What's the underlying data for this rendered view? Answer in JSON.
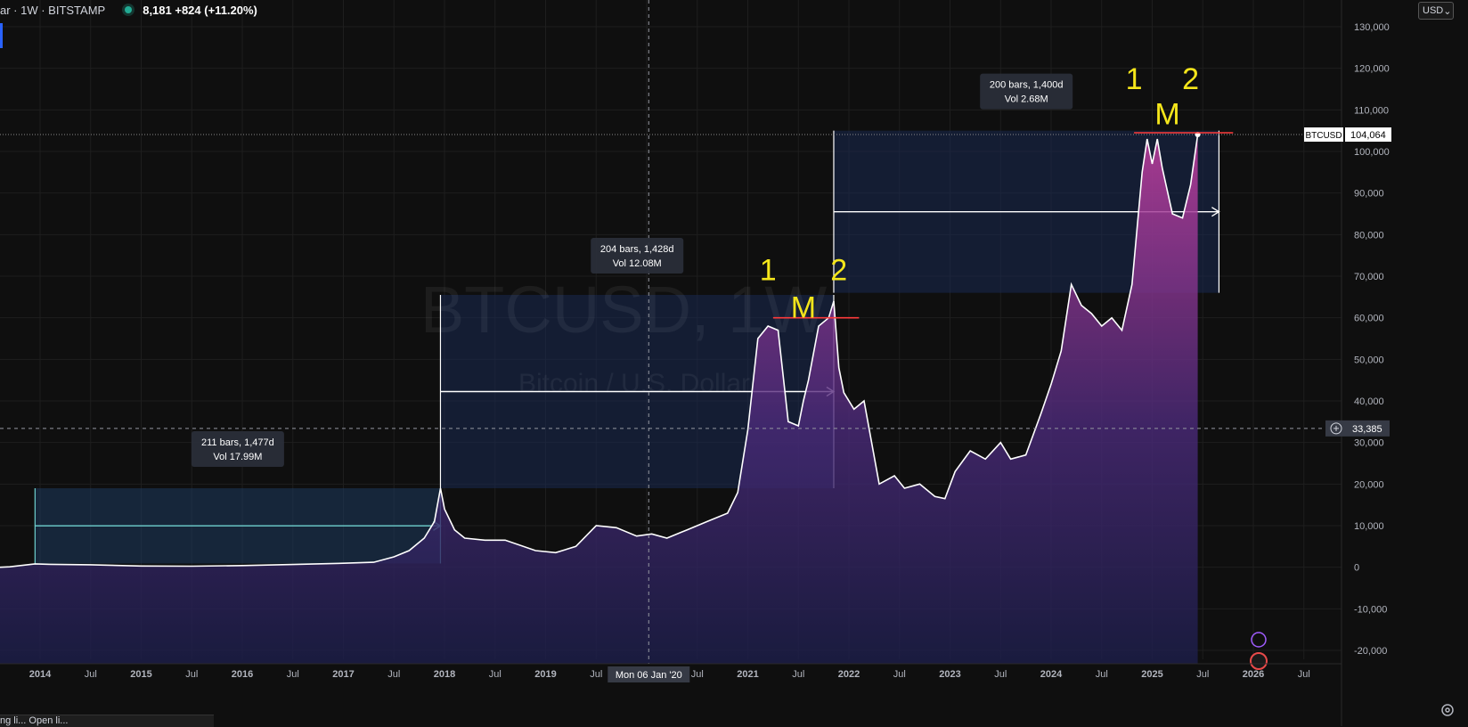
{
  "header": {
    "symbol_text": "ar · 1W · BITSTAMP",
    "values_text": "8,181  +824 (+11.20%)",
    "currency": "USD"
  },
  "watermark": {
    "title": "BTCUSD, 1W",
    "subtitle": "Bitcoin / U.S. Dollar"
  },
  "crosshair": {
    "price_label": "33,385",
    "date_label": "Mon 06 Jan '20"
  },
  "price_tag": {
    "symbol": "BTCUSD",
    "value": "104,064"
  },
  "bottom_strip_text": "ng li... Open li...",
  "colors": {
    "background": "#0f0f0f",
    "price_line": "#ffffff",
    "box_fill": "#1a2a52",
    "box_first": "#1e3a5f",
    "annotation": "#f5e61b",
    "resistance": "#ff3b3b",
    "arrow_first": "#6fd1cf",
    "area_top": "#c23fa0",
    "area_bottom": "#1c1e4a"
  },
  "chart_data": {
    "type": "area",
    "ylim": [
      -20000,
      130000
    ],
    "y_ticks": [
      "130,000",
      "120,000",
      "110,000",
      "100,000",
      "90,000",
      "80,000",
      "70,000",
      "60,000",
      "50,000",
      "40,000",
      "30,000",
      "20,000",
      "10,000",
      "0",
      "-10,000",
      "-20,000"
    ],
    "x_ticks": [
      "2014",
      "Jul",
      "2015",
      "Jul",
      "2016",
      "Jul",
      "2017",
      "Jul",
      "2018",
      "Jul",
      "2019",
      "Jul",
      "2020",
      "Jul",
      "2021",
      "Jul",
      "2022",
      "Jul",
      "2023",
      "Jul",
      "2024",
      "Jul",
      "2025",
      "Jul",
      "2026",
      "Jul"
    ],
    "series": [
      {
        "x": [
          2013.7,
          2013.95,
          2014.1,
          2014.5,
          2015.0,
          2015.5,
          2016.0,
          2016.5,
          2017.0,
          2017.3,
          2017.5,
          2017.65,
          2017.8,
          2017.9,
          2017.96,
          2018.0,
          2018.1,
          2018.2,
          2018.4,
          2018.6,
          2018.9,
          2019.1,
          2019.3,
          2019.5,
          2019.7,
          2019.9,
          2020.05,
          2020.2,
          2020.4,
          2020.6,
          2020.8,
          2020.9,
          2021.0,
          2021.1,
          2021.2,
          2021.3,
          2021.4,
          2021.5,
          2021.55,
          2021.6,
          2021.7,
          2021.8,
          2021.85,
          2021.9,
          2021.95,
          2022.05,
          2022.15,
          2022.3,
          2022.45,
          2022.55,
          2022.7,
          2022.85,
          2022.95,
          2023.05,
          2023.2,
          2023.35,
          2023.5,
          2023.6,
          2023.75,
          2023.9,
          2024.0,
          2024.1,
          2024.2,
          2024.3,
          2024.4,
          2024.5,
          2024.6,
          2024.7,
          2024.8,
          2024.9,
          2024.95,
          2025.0,
          2025.05,
          2025.1,
          2025.2,
          2025.3,
          2025.38,
          2025.45
        ],
        "y": [
          100,
          800,
          700,
          600,
          300,
          250,
          400,
          650,
          950,
          1200,
          2500,
          4000,
          7000,
          11000,
          19000,
          14000,
          9000,
          7000,
          6500,
          6500,
          4000,
          3500,
          5000,
          10000,
          9500,
          7500,
          8000,
          7000,
          9000,
          11000,
          13000,
          18000,
          33000,
          55000,
          58000,
          57000,
          35000,
          34000,
          40000,
          45000,
          58000,
          60000,
          64000,
          48000,
          42000,
          38000,
          40000,
          20000,
          22000,
          19000,
          20000,
          17000,
          16500,
          23000,
          28000,
          26000,
          30000,
          26000,
          27000,
          37000,
          44000,
          52000,
          68000,
          63000,
          61000,
          58000,
          60000,
          57000,
          68000,
          95000,
          103000,
          97000,
          103000,
          96000,
          85000,
          84000,
          92000,
          104064
        ]
      }
    ],
    "measurements": [
      {
        "bars_label": "211 bars, 1,477d",
        "vol_label": "Vol 17.99M",
        "x_start": 2013.95,
        "x_end": 2017.96,
        "y_low": 900,
        "y_high": 19000
      },
      {
        "bars_label": "204 bars, 1,428d",
        "vol_label": "Vol 12.08M",
        "x_start": 2017.96,
        "x_end": 2021.85,
        "y_low": 19000,
        "y_high": 65500
      },
      {
        "bars_label": "200 bars, 1,400d",
        "vol_label": "Vol 2.68M",
        "x_start": 2021.85,
        "x_end": 2025.66,
        "y_low": 66000,
        "y_high": 105000
      }
    ],
    "annotations": [
      {
        "text": "1",
        "x": 2021.2,
        "y": 69000
      },
      {
        "text": "M",
        "x": 2021.55,
        "y": 60000
      },
      {
        "text": "2",
        "x": 2021.9,
        "y": 69000
      },
      {
        "text": "1",
        "x": 2024.82,
        "y": 115000
      },
      {
        "text": "M",
        "x": 2025.15,
        "y": 106500
      },
      {
        "text": "2",
        "x": 2025.38,
        "y": 115000
      }
    ],
    "resistance_lines": [
      {
        "x_start": 2021.25,
        "x_end": 2022.1,
        "y": 60000
      },
      {
        "x_start": 2024.82,
        "x_end": 2025.8,
        "y": 104500
      }
    ],
    "current_price": 104064,
    "crosshair_price": 33385,
    "crosshair_x": 2020.02
  }
}
